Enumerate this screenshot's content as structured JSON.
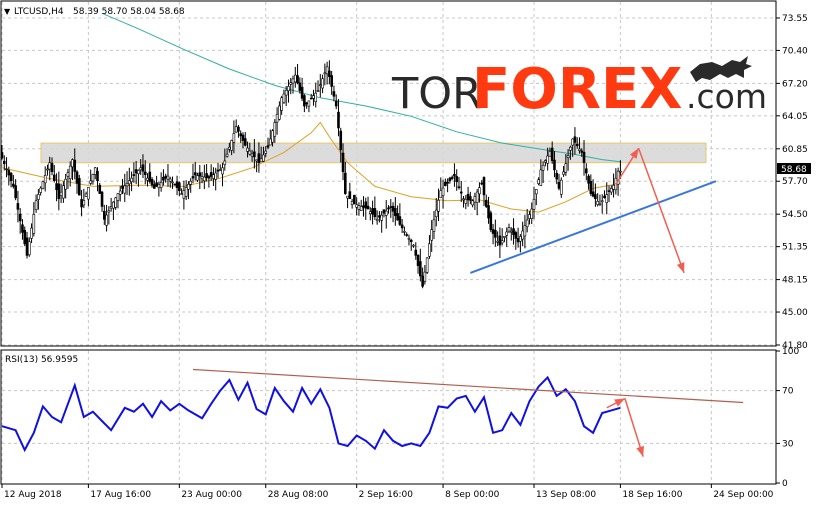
{
  "header": {
    "symbol_label": "LTCUSD,H4",
    "ohlc": "58.39 58.70 58.04 58.68",
    "rsi_label": "RSI(13) 56.9595"
  },
  "brand": {
    "tor": "TOR",
    "forex": "FOREX",
    "dotcom": ".com"
  },
  "colors": {
    "background": "#ffffff",
    "grid": "#c8c8c8",
    "candle": "#000000",
    "ma_fast": "#e0a020",
    "ma_slow": "#30b0a0",
    "resistance_zone": "#d9d9d9",
    "resistance_border": "#e8c060",
    "trendline": "#3a78d8",
    "forecast_arrow": "#f06050",
    "rsi_line": "#1010e0",
    "rsi_trendline": "#b06050",
    "brand_dark": "#2a2a2a",
    "brand_red": "#ff3a10"
  },
  "chart_data": [
    {
      "type": "line",
      "name": "price",
      "ylim": [
        41.8,
        75.1
      ],
      "y_ticks": [
        "73.55",
        "70.40",
        "67.20",
        "64.05",
        "60.85",
        "57.70",
        "54.50",
        "51.35",
        "48.15",
        "45.00",
        "41.80"
      ],
      "current_price": "58.68",
      "x_ticks": [
        "12 Aug 2018",
        "17 Aug 16:00",
        "23 Aug 00:00",
        "28 Aug 08:00",
        "2 Sep 16:00",
        "8 Sep 00:00",
        "13 Sep 08:00",
        "18 Sep 16:00",
        "24 Sep 00:00"
      ],
      "price_path": [
        [
          0,
          60.5
        ],
        [
          3,
          57.2
        ],
        [
          6,
          50.5
        ],
        [
          8,
          55.8
        ],
        [
          11,
          59.5
        ],
        [
          13,
          56.0
        ],
        [
          16,
          59.8
        ],
        [
          18,
          55.2
        ],
        [
          21,
          59.0
        ],
        [
          23,
          54.0
        ],
        [
          26,
          56.5
        ],
        [
          29,
          58.0
        ],
        [
          31,
          59.0
        ],
        [
          34,
          57.0
        ],
        [
          37,
          58.2
        ],
        [
          40,
          56.5
        ],
        [
          43,
          58.3
        ],
        [
          46,
          58.0
        ],
        [
          49,
          59.0
        ],
        [
          52,
          63.0
        ],
        [
          54,
          61.2
        ],
        [
          57,
          59.5
        ],
        [
          59,
          61.0
        ],
        [
          62,
          65.8
        ],
        [
          65,
          68.0
        ],
        [
          67,
          65.0
        ],
        [
          70,
          66.5
        ],
        [
          72,
          68.8
        ],
        [
          74,
          65.0
        ],
        [
          76,
          56.5
        ],
        [
          78,
          55.5
        ],
        [
          81,
          55.0
        ],
        [
          83,
          54.0
        ],
        [
          86,
          55.2
        ],
        [
          88,
          53.5
        ],
        [
          91,
          51.5
        ],
        [
          93,
          47.5
        ],
        [
          95,
          53.0
        ],
        [
          97,
          56.8
        ],
        [
          100,
          58.2
        ],
        [
          102,
          56.0
        ],
        [
          104,
          55.8
        ],
        [
          106,
          57.5
        ],
        [
          108,
          53.0
        ],
        [
          110,
          51.5
        ],
        [
          112,
          53.2
        ],
        [
          114,
          51.8
        ],
        [
          117,
          55.0
        ],
        [
          119,
          58.8
        ],
        [
          121,
          60.6
        ],
        [
          123,
          57.0
        ],
        [
          126,
          61.8
        ],
        [
          128,
          60.5
        ],
        [
          130,
          56.5
        ],
        [
          132,
          55.5
        ],
        [
          135,
          57.3
        ],
        [
          136,
          58.68
        ]
      ],
      "ma_fast": [
        [
          0,
          59.0
        ],
        [
          10,
          58.0
        ],
        [
          20,
          57.2
        ],
        [
          30,
          57.3
        ],
        [
          40,
          57.2
        ],
        [
          48,
          58.0
        ],
        [
          55,
          59.0
        ],
        [
          62,
          60.5
        ],
        [
          68,
          62.4
        ],
        [
          70,
          63.4
        ],
        [
          72,
          62.0
        ],
        [
          76,
          59.5
        ],
        [
          82,
          57.2
        ],
        [
          90,
          56.2
        ],
        [
          98,
          55.8
        ],
        [
          105,
          55.9
        ],
        [
          112,
          55.0
        ],
        [
          118,
          54.7
        ],
        [
          124,
          55.7
        ],
        [
          130,
          57.0
        ],
        [
          136,
          57.5
        ]
      ],
      "ma_slow": [
        [
          22,
          74.0
        ],
        [
          30,
          72.5
        ],
        [
          40,
          70.5
        ],
        [
          50,
          68.6
        ],
        [
          60,
          67.0
        ],
        [
          70,
          65.8
        ],
        [
          80,
          65.0
        ],
        [
          90,
          64.0
        ],
        [
          100,
          62.5
        ],
        [
          110,
          61.4
        ],
        [
          120,
          60.7
        ],
        [
          126,
          60.3
        ],
        [
          132,
          59.8
        ],
        [
          136,
          59.6
        ]
      ],
      "resistance_zone": [
        59.5,
        61.4
      ],
      "support_trendline": [
        [
          103,
          48.8
        ],
        [
          157,
          57.7
        ]
      ],
      "forecast_up": [
        [
          135,
          57.4
        ],
        [
          140,
          60.9
        ]
      ],
      "forecast_down": [
        [
          140,
          60.9
        ],
        [
          150,
          48.8
        ]
      ]
    },
    {
      "type": "line",
      "name": "RSI(13)",
      "ylim": [
        0,
        100
      ],
      "y_ticks": [
        "100",
        "70",
        "30",
        "0"
      ],
      "rsi_path": [
        [
          0,
          43
        ],
        [
          3,
          40
        ],
        [
          5,
          25
        ],
        [
          7,
          38
        ],
        [
          9,
          58
        ],
        [
          11,
          50
        ],
        [
          13,
          46
        ],
        [
          16,
          74
        ],
        [
          18,
          50
        ],
        [
          20,
          54
        ],
        [
          22,
          47
        ],
        [
          24,
          40
        ],
        [
          27,
          57
        ],
        [
          29,
          54
        ],
        [
          31,
          60
        ],
        [
          33,
          50
        ],
        [
          35,
          62
        ],
        [
          37,
          55
        ],
        [
          39,
          60
        ],
        [
          41,
          55
        ],
        [
          44,
          49
        ],
        [
          46,
          60
        ],
        [
          48,
          70
        ],
        [
          50,
          78
        ],
        [
          52,
          63
        ],
        [
          54,
          76
        ],
        [
          56,
          56
        ],
        [
          58,
          52
        ],
        [
          60,
          72
        ],
        [
          62,
          62
        ],
        [
          64,
          54
        ],
        [
          66,
          72
        ],
        [
          68,
          60
        ],
        [
          70,
          71
        ],
        [
          72,
          57
        ],
        [
          74,
          30
        ],
        [
          76,
          28
        ],
        [
          78,
          36
        ],
        [
          80,
          32
        ],
        [
          82,
          26
        ],
        [
          84,
          40
        ],
        [
          86,
          32
        ],
        [
          88,
          28
        ],
        [
          90,
          30
        ],
        [
          92,
          28
        ],
        [
          94,
          38
        ],
        [
          96,
          58
        ],
        [
          98,
          57
        ],
        [
          100,
          64
        ],
        [
          102,
          66
        ],
        [
          104,
          54
        ],
        [
          106,
          65
        ],
        [
          108,
          38
        ],
        [
          110,
          40
        ],
        [
          112,
          53
        ],
        [
          114,
          44
        ],
        [
          116,
          62
        ],
        [
          118,
          73
        ],
        [
          120,
          80
        ],
        [
          122,
          66
        ],
        [
          124,
          71
        ],
        [
          126,
          62
        ],
        [
          128,
          43
        ],
        [
          130,
          38
        ],
        [
          132,
          53
        ],
        [
          134,
          55
        ],
        [
          136,
          57
        ]
      ],
      "rsi_trendline": [
        [
          42,
          86
        ],
        [
          163,
          61
        ]
      ],
      "forecast_up": [
        [
          133,
          57
        ],
        [
          137,
          64
        ]
      ],
      "forecast_down": [
        [
          137,
          64
        ],
        [
          141,
          20
        ]
      ]
    }
  ]
}
